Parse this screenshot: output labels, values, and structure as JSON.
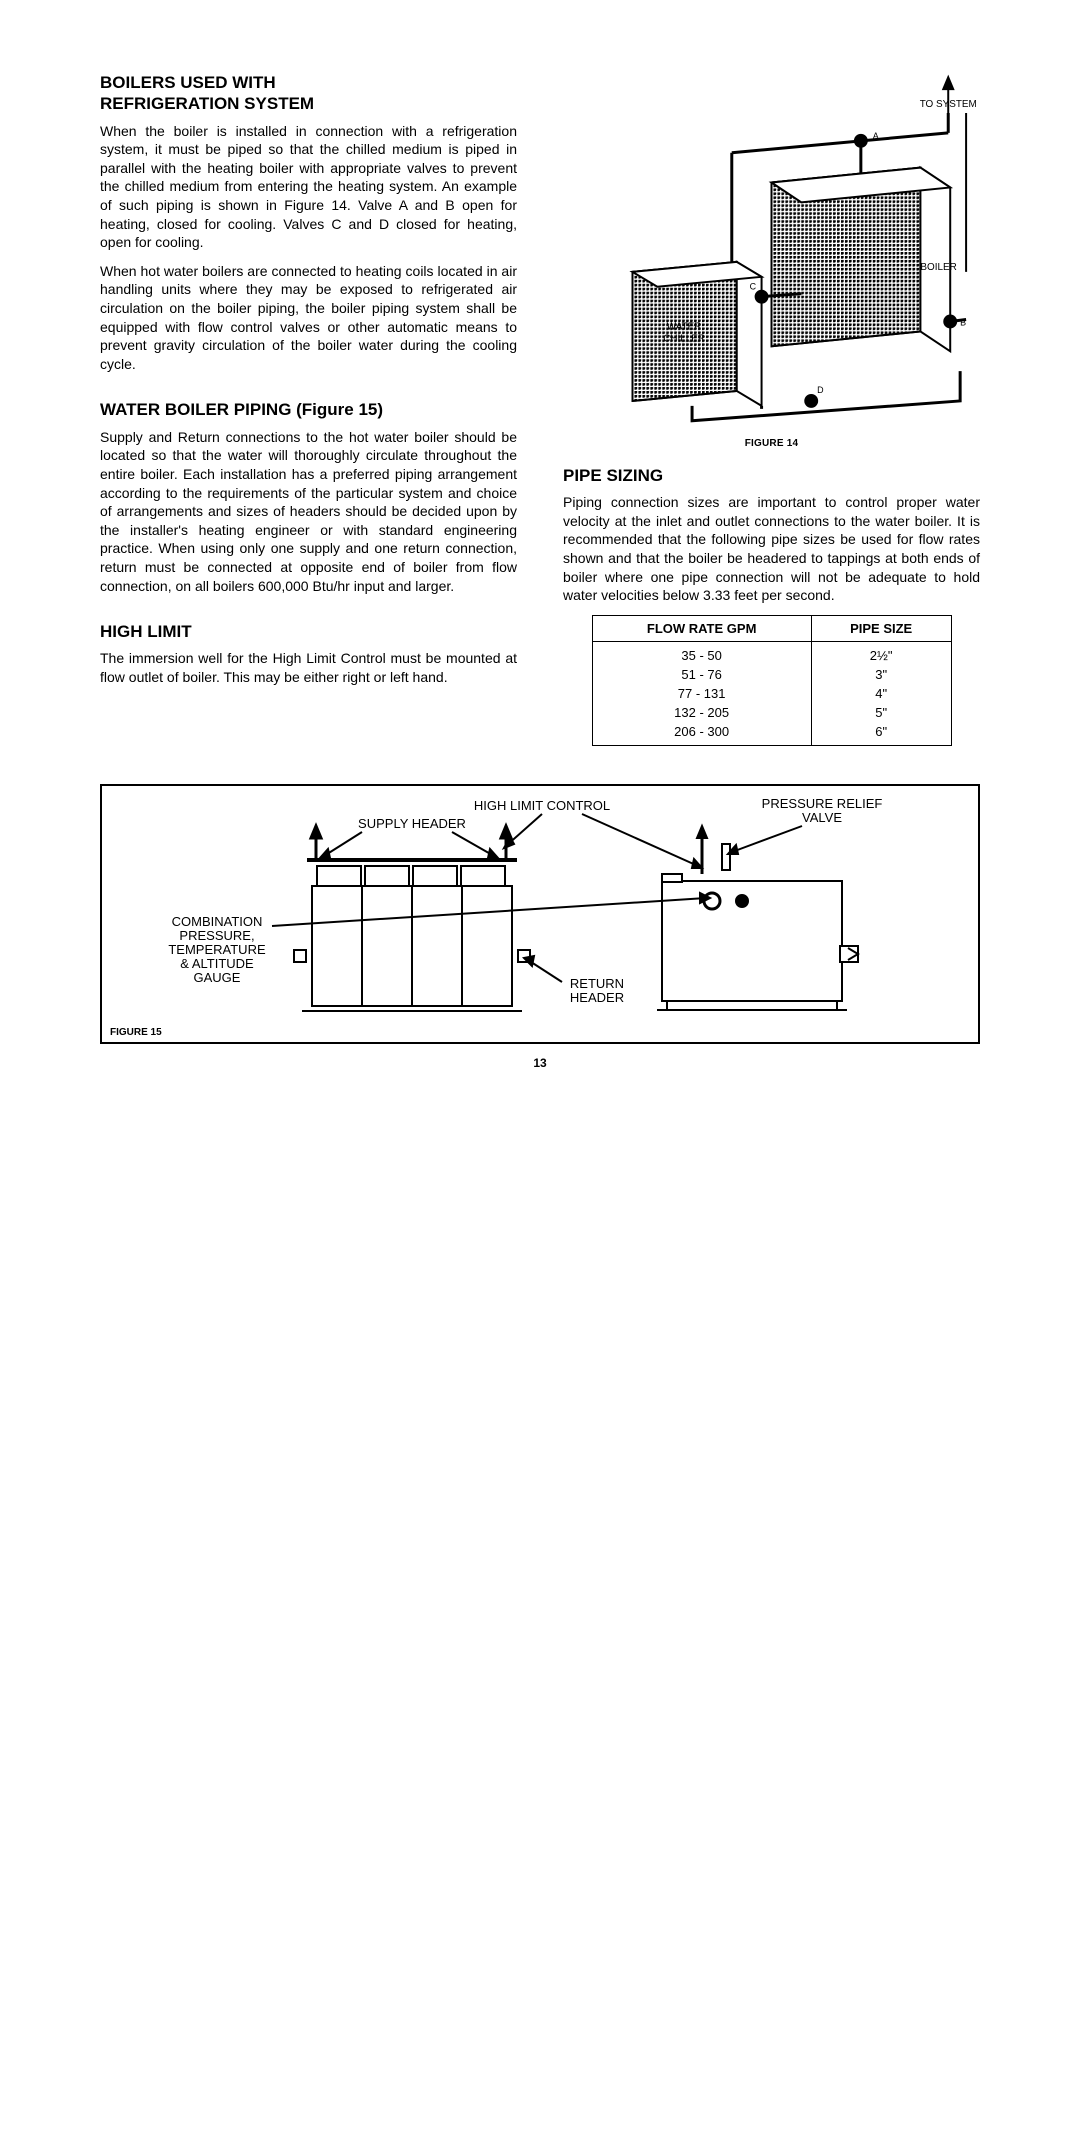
{
  "headings": {
    "boilers_refrig": "BOILERS USED WITH\nREFRIGERATION SYSTEM",
    "water_piping": "WATER BOILER PIPING (Figure 15)",
    "high_limit": "HIGH LIMIT",
    "pipe_sizing": "PIPE SIZING"
  },
  "paragraphs": {
    "p1": "When the boiler is installed in connection with a refrigeration system, it must be piped so that the chilled medium is piped in parallel with the heating boiler with appropriate valves to prevent the chilled medium from entering the heating system. An example of such piping is shown in Figure 14. Valve A and B open for heating, closed for cooling. Valves C and D closed for heating, open for cooling.",
    "p2": "When hot water boilers are connected to heating coils located in air handling units where they may be exposed to refrigerated air circulation on the boiler piping, the boiler piping system shall be equipped with flow control valves or other automatic means to prevent gravity circulation of the boiler water during the cooling cycle.",
    "p3": "Supply and Return connections to the hot water boiler should be located so that the water will thoroughly circulate throughout the entire boiler. Each installation has a preferred piping arrangement according to the requirements of the particular system and choice of arrangements and sizes of headers should be decided upon by the installer's heating engineer or with standard engineering practice. When using only one supply and one return connection, return must be connected at opposite end of boiler from flow connection, on all boilers 600,000 Btu/hr input and larger.",
    "p4": "The immersion well for the High Limit Control must be mounted at flow outlet of boiler. This may be either right or left hand.",
    "p5": "Piping connection sizes are important to control proper water velocity at the inlet and outlet connections to the water boiler. It is recommended that the following pipe sizes be used for flow rates shown and that the boiler be headered to tappings at both ends of boiler where one pipe connection will not be adequate to hold water velocities below 3.33 feet per second."
  },
  "fig14": {
    "caption": "FIGURE 14",
    "labels": {
      "to_system": "TO SYSTEM",
      "boiler": "BOILER",
      "water_chiller": "WATER\nCHILLER",
      "A": "A",
      "B": "B",
      "C": "C",
      "D": "D"
    }
  },
  "pipe_table": {
    "col1": "FLOW RATE GPM",
    "col2": "PIPE SIZE",
    "rows": [
      {
        "gpm": "35 - 50",
        "size": "2½\""
      },
      {
        "gpm": "51 - 76",
        "size": "3\""
      },
      {
        "gpm": "77 - 131",
        "size": "4\""
      },
      {
        "gpm": "132 - 205",
        "size": "5\""
      },
      {
        "gpm": "206 - 300",
        "size": "6\""
      }
    ]
  },
  "fig15": {
    "caption": "FIGURE 15",
    "labels": {
      "high_limit": "HIGH LIMIT CONTROL",
      "relief": "PRESSURE RELIEF\nVALVE",
      "supply": "SUPPLY HEADER",
      "return": "RETURN\nHEADER",
      "gauge": "COMBINATION\nPRESSURE,\nTEMPERATURE\n& ALTITUDE\nGAUGE"
    }
  },
  "page_number": "13",
  "colors": {
    "ink": "#000000",
    "bg": "#ffffff",
    "hatch": "#777777"
  }
}
